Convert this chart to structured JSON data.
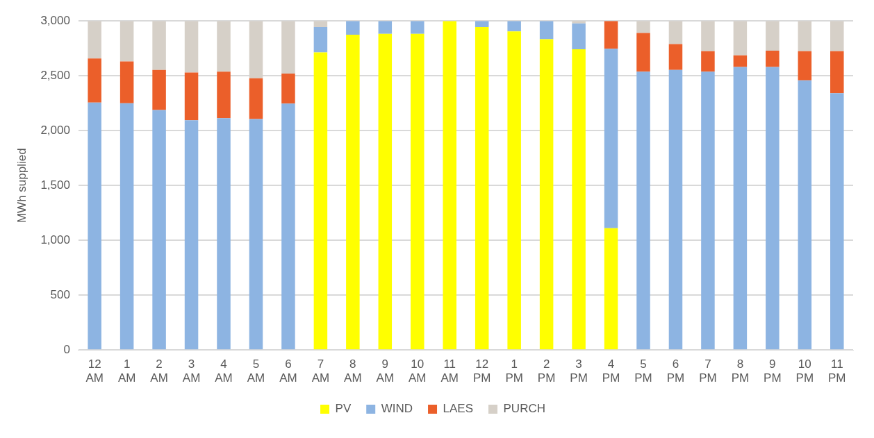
{
  "chart_data": {
    "type": "bar",
    "stacked": true,
    "ylabel": "MWh supplied",
    "categories": [
      "12 AM",
      "1 AM",
      "2 AM",
      "3 AM",
      "4 AM",
      "5 AM",
      "6 AM",
      "7 AM",
      "8 AM",
      "9 AM",
      "10 AM",
      "11 AM",
      "12 PM",
      "1 PM",
      "2 PM",
      "3 PM",
      "4 PM",
      "5 PM",
      "6 PM",
      "7 PM",
      "8 PM",
      "9 PM",
      "10 PM",
      "11 PM"
    ],
    "series": [
      {
        "name": "PV",
        "color": "#ffff00",
        "values": [
          0,
          0,
          0,
          0,
          0,
          0,
          0,
          2713,
          2874,
          2883,
          2883,
          3000,
          2945,
          2905,
          2834,
          2742,
          1110,
          0,
          0,
          0,
          0,
          0,
          0,
          0
        ]
      },
      {
        "name": "WIND",
        "color": "#8db4e2",
        "values": [
          2256,
          2250,
          2188,
          2095,
          2113,
          2106,
          2247,
          232,
          126,
          117,
          117,
          0,
          55,
          95,
          166,
          236,
          1636,
          2537,
          2554,
          2537,
          2581,
          2581,
          2459,
          2342
        ]
      },
      {
        "name": "LAES",
        "color": "#eb5f2a",
        "values": [
          402,
          381,
          366,
          435,
          424,
          371,
          274,
          0,
          0,
          0,
          0,
          0,
          0,
          0,
          0,
          0,
          254,
          353,
          236,
          187,
          106,
          148,
          265,
          382
        ]
      },
      {
        "name": "PURCH",
        "color": "#d6d0c8",
        "values": [
          342,
          369,
          446,
          470,
          463,
          523,
          479,
          55,
          0,
          0,
          0,
          0,
          0,
          0,
          0,
          22,
          0,
          110,
          210,
          276,
          313,
          271,
          276,
          276
        ]
      }
    ],
    "ylim": [
      0,
      3000
    ],
    "yticks": [
      0,
      500,
      {
        "value": 1000,
        "label": "1,000"
      },
      {
        "value": 1500,
        "label": "1,500"
      },
      {
        "value": 2000,
        "label": "2,000"
      },
      {
        "value": 2500,
        "label": "2,500"
      },
      {
        "value": 3000,
        "label": "3,000"
      }
    ],
    "grid": "y",
    "legend": "bottom"
  }
}
